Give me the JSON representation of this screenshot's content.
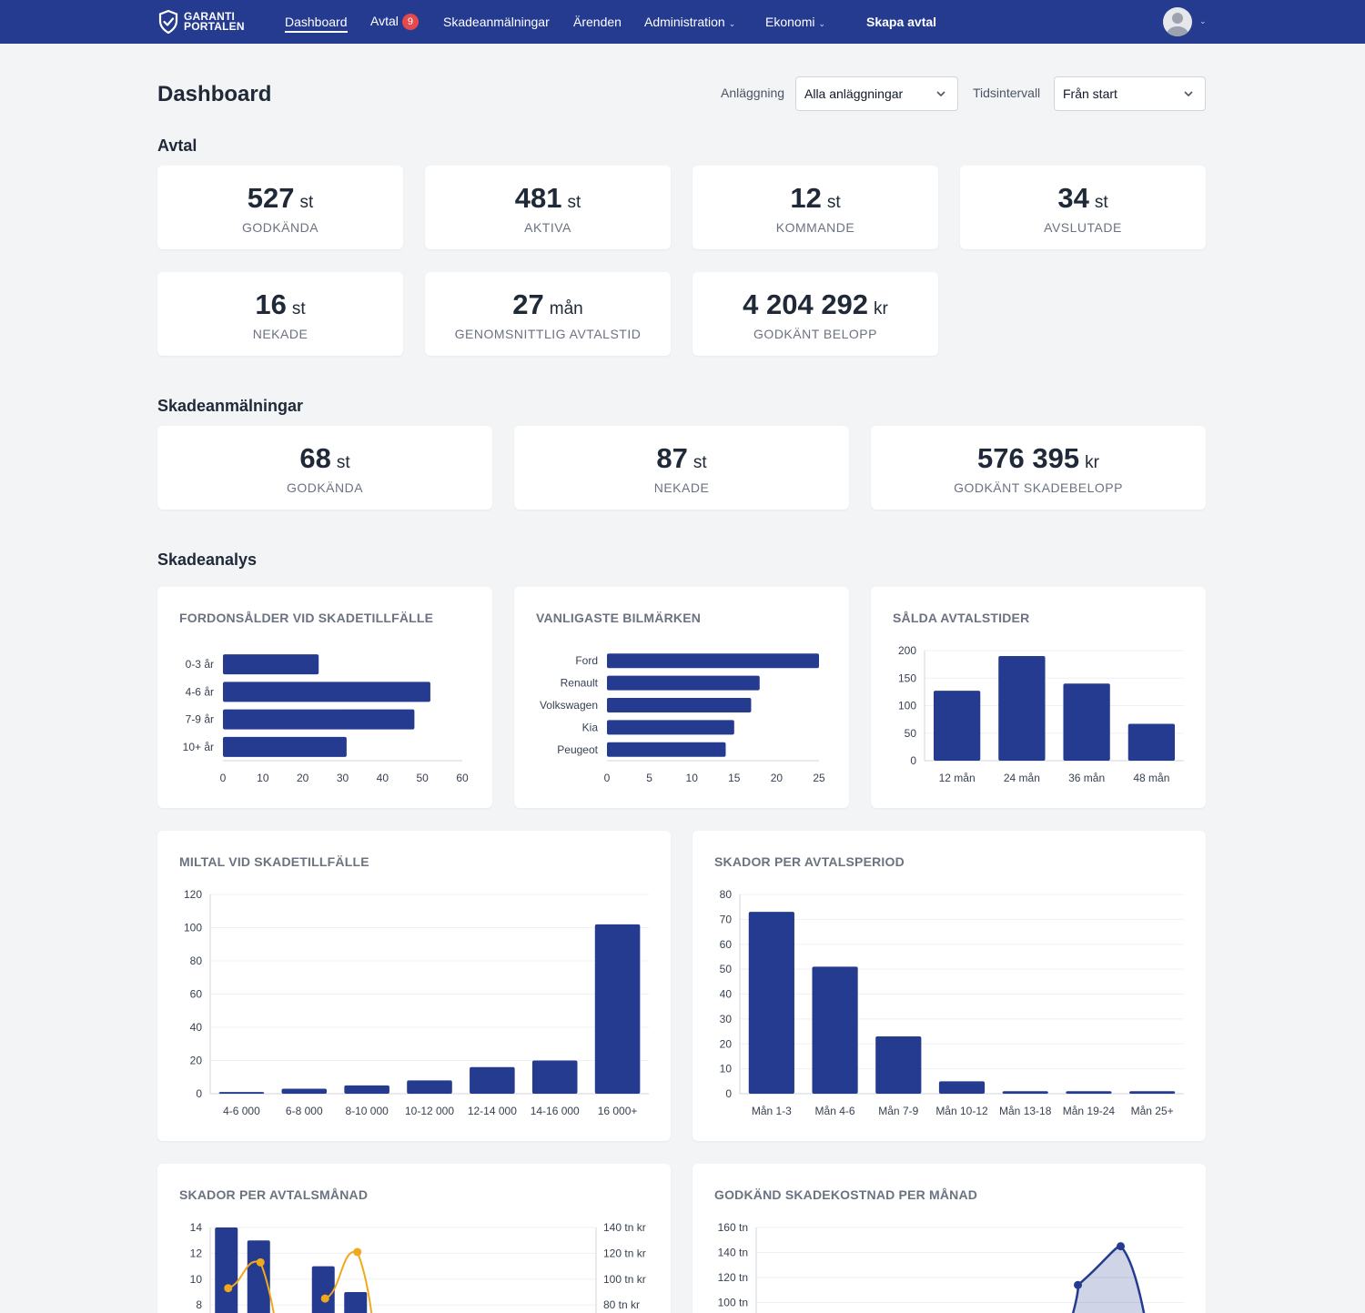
{
  "nav": {
    "logo_line1": "GARANTI",
    "logo_line2": "PORTALEN",
    "items": [
      {
        "label": "Dashboard"
      },
      {
        "label": "Avtal",
        "badge": "9"
      },
      {
        "label": "Skadeanmälningar"
      },
      {
        "label": "Ärenden"
      },
      {
        "label": "Administration"
      },
      {
        "label": "Ekonomi"
      }
    ],
    "cta": "Skapa avtal",
    "accent": "#243b8f"
  },
  "page": {
    "title": "Dashboard",
    "filter_facility_label": "Anläggning",
    "filter_facility_value": "Alla anläggningar",
    "filter_time_label": "Tidsintervall",
    "filter_time_value": "Från start"
  },
  "avtal": {
    "title": "Avtal",
    "stats": [
      {
        "value": "527",
        "unit": "st",
        "label": "GODKÄNDA"
      },
      {
        "value": "481",
        "unit": "st",
        "label": "AKTIVA"
      },
      {
        "value": "12",
        "unit": "st",
        "label": "KOMMANDE"
      },
      {
        "value": "34",
        "unit": "st",
        "label": "AVSLUTADE"
      },
      {
        "value": "16",
        "unit": "st",
        "label": "NEKADE"
      },
      {
        "value": "27",
        "unit": "mån",
        "label": "GENOMSNITTLIG AVTALSTID"
      },
      {
        "value": "4 204 292",
        "unit": "kr",
        "label": "GODKÄNT BELOPP"
      }
    ]
  },
  "skade": {
    "title": "Skadeanmälningar",
    "stats": [
      {
        "value": "68",
        "unit": "st",
        "label": "GODKÄNDA"
      },
      {
        "value": "87",
        "unit": "st",
        "label": "NEKADE"
      },
      {
        "value": "576 395",
        "unit": "kr",
        "label": "GODKÄNT SKADEBELOPP"
      }
    ]
  },
  "analys": {
    "title": "Skadeanalys"
  },
  "chart_data": [
    {
      "type": "bar",
      "orientation": "horizontal",
      "title": "FORDONSÅLDER VID SKADETILLFÄLLE",
      "categories": [
        "0-3 år",
        "4-6 år",
        "7-9 år",
        "10+ år"
      ],
      "values": [
        24,
        52,
        48,
        31
      ],
      "xlim": [
        0,
        60
      ],
      "ticks": [
        "0",
        "10",
        "20",
        "30",
        "40",
        "50",
        "60"
      ],
      "color": "#243b8f"
    },
    {
      "type": "bar",
      "orientation": "horizontal",
      "title": "VANLIGASTE BILMÄRKEN",
      "categories": [
        "Ford",
        "Renault",
        "Volkswagen",
        "Kia",
        "Peugeot"
      ],
      "values": [
        25,
        18,
        17,
        15,
        14
      ],
      "xlim": [
        0,
        25
      ],
      "ticks": [
        "0",
        "5",
        "10",
        "15",
        "20",
        "25"
      ],
      "color": "#243b8f"
    },
    {
      "type": "bar",
      "title": "SÅLDA AVTALSTIDER",
      "categories": [
        "12 mån",
        "24 mån",
        "36 mån",
        "48 mån"
      ],
      "values": [
        127,
        190,
        140,
        67
      ],
      "ylim": [
        0,
        200
      ],
      "ticks": [
        "0",
        "50",
        "100",
        "150",
        "200"
      ],
      "color": "#243b8f"
    },
    {
      "type": "bar",
      "title": "MILTAL VID SKADETILLFÄLLE",
      "categories": [
        "4-6 000",
        "6-8 000",
        "8-10 000",
        "10-12 000",
        "12-14 000",
        "14-16 000",
        "16 000+"
      ],
      "values": [
        1,
        3,
        5,
        8,
        16,
        20,
        102
      ],
      "ylim": [
        0,
        120
      ],
      "ticks": [
        "0",
        "20",
        "40",
        "60",
        "80",
        "100",
        "120"
      ],
      "color": "#243b8f"
    },
    {
      "type": "bar",
      "title": "SKADOR PER AVTALSPERIOD",
      "categories": [
        "Mån 1-3",
        "Mån 4-6",
        "Mån 7-9",
        "Mån 10-12",
        "Mån 13-18",
        "Mån 19-24",
        "Mån 25+"
      ],
      "values": [
        73,
        51,
        23,
        5,
        1,
        1,
        1
      ],
      "ylim": [
        0,
        80
      ],
      "ticks": [
        "0",
        "10",
        "20",
        "30",
        "40",
        "50",
        "60",
        "70",
        "80"
      ],
      "color": "#243b8f"
    },
    {
      "type": "bar",
      "title": "SKADOR PER AVTALSMÅNAD",
      "left_ticks": [
        "8",
        "10",
        "12",
        "14"
      ],
      "right_ticks": [
        "80 tn kr",
        "100 tn kr",
        "120 tn kr",
        "140 tn kr"
      ],
      "ylim": [
        8,
        14
      ],
      "y2lim": [
        80,
        140
      ],
      "series": [
        {
          "values": [
            14,
            13,
            null,
            11,
            9
          ]
        },
        {
          "values": [
            93,
            113,
            null,
            85,
            121
          ]
        }
      ],
      "colors": [
        "#243b8f",
        "#f0a91c"
      ]
    },
    {
      "type": "area",
      "title": "GODKÄND SKADEKOSTNAD PER MÅNAD",
      "ticks": [
        "100 tn",
        "120 tn",
        "140 tn",
        "160 tn"
      ],
      "ylim": [
        100,
        160
      ],
      "points": [
        {
          "x": 8,
          "y": 114
        },
        {
          "x": 9,
          "y": 145
        }
      ],
      "color": "#243b8f"
    }
  ]
}
